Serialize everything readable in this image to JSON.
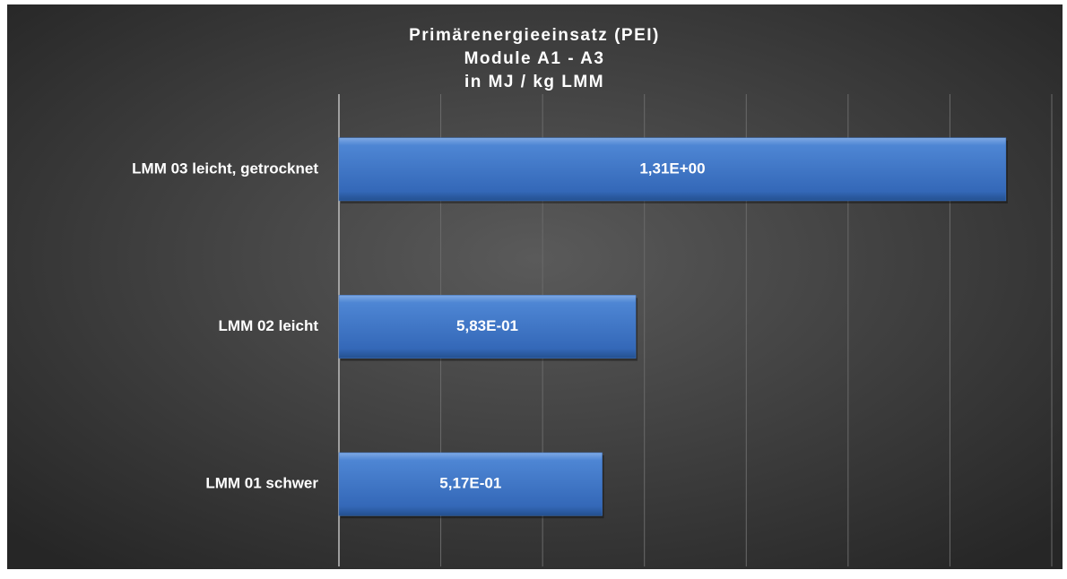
{
  "chart_data": {
    "type": "bar",
    "orientation": "horizontal",
    "title": [
      "Primärenergieeinsatz (PEI)",
      "Module A1 - A3",
      "in MJ / kg LMM"
    ],
    "categories": [
      "LMM 03 leicht, getrocknet",
      "LMM 02 leicht",
      "LMM 01 schwer"
    ],
    "values": [
      1.31,
      0.583,
      0.517
    ],
    "value_labels": [
      "1,31E+00",
      "5,83E-01",
      "5,17E-01"
    ],
    "color": "#3f77c8",
    "xlim": [
      0,
      1.4
    ],
    "xticks": [
      0,
      0.2,
      0.4,
      0.6,
      0.8,
      1.0,
      1.2,
      1.4
    ],
    "grid": true
  }
}
